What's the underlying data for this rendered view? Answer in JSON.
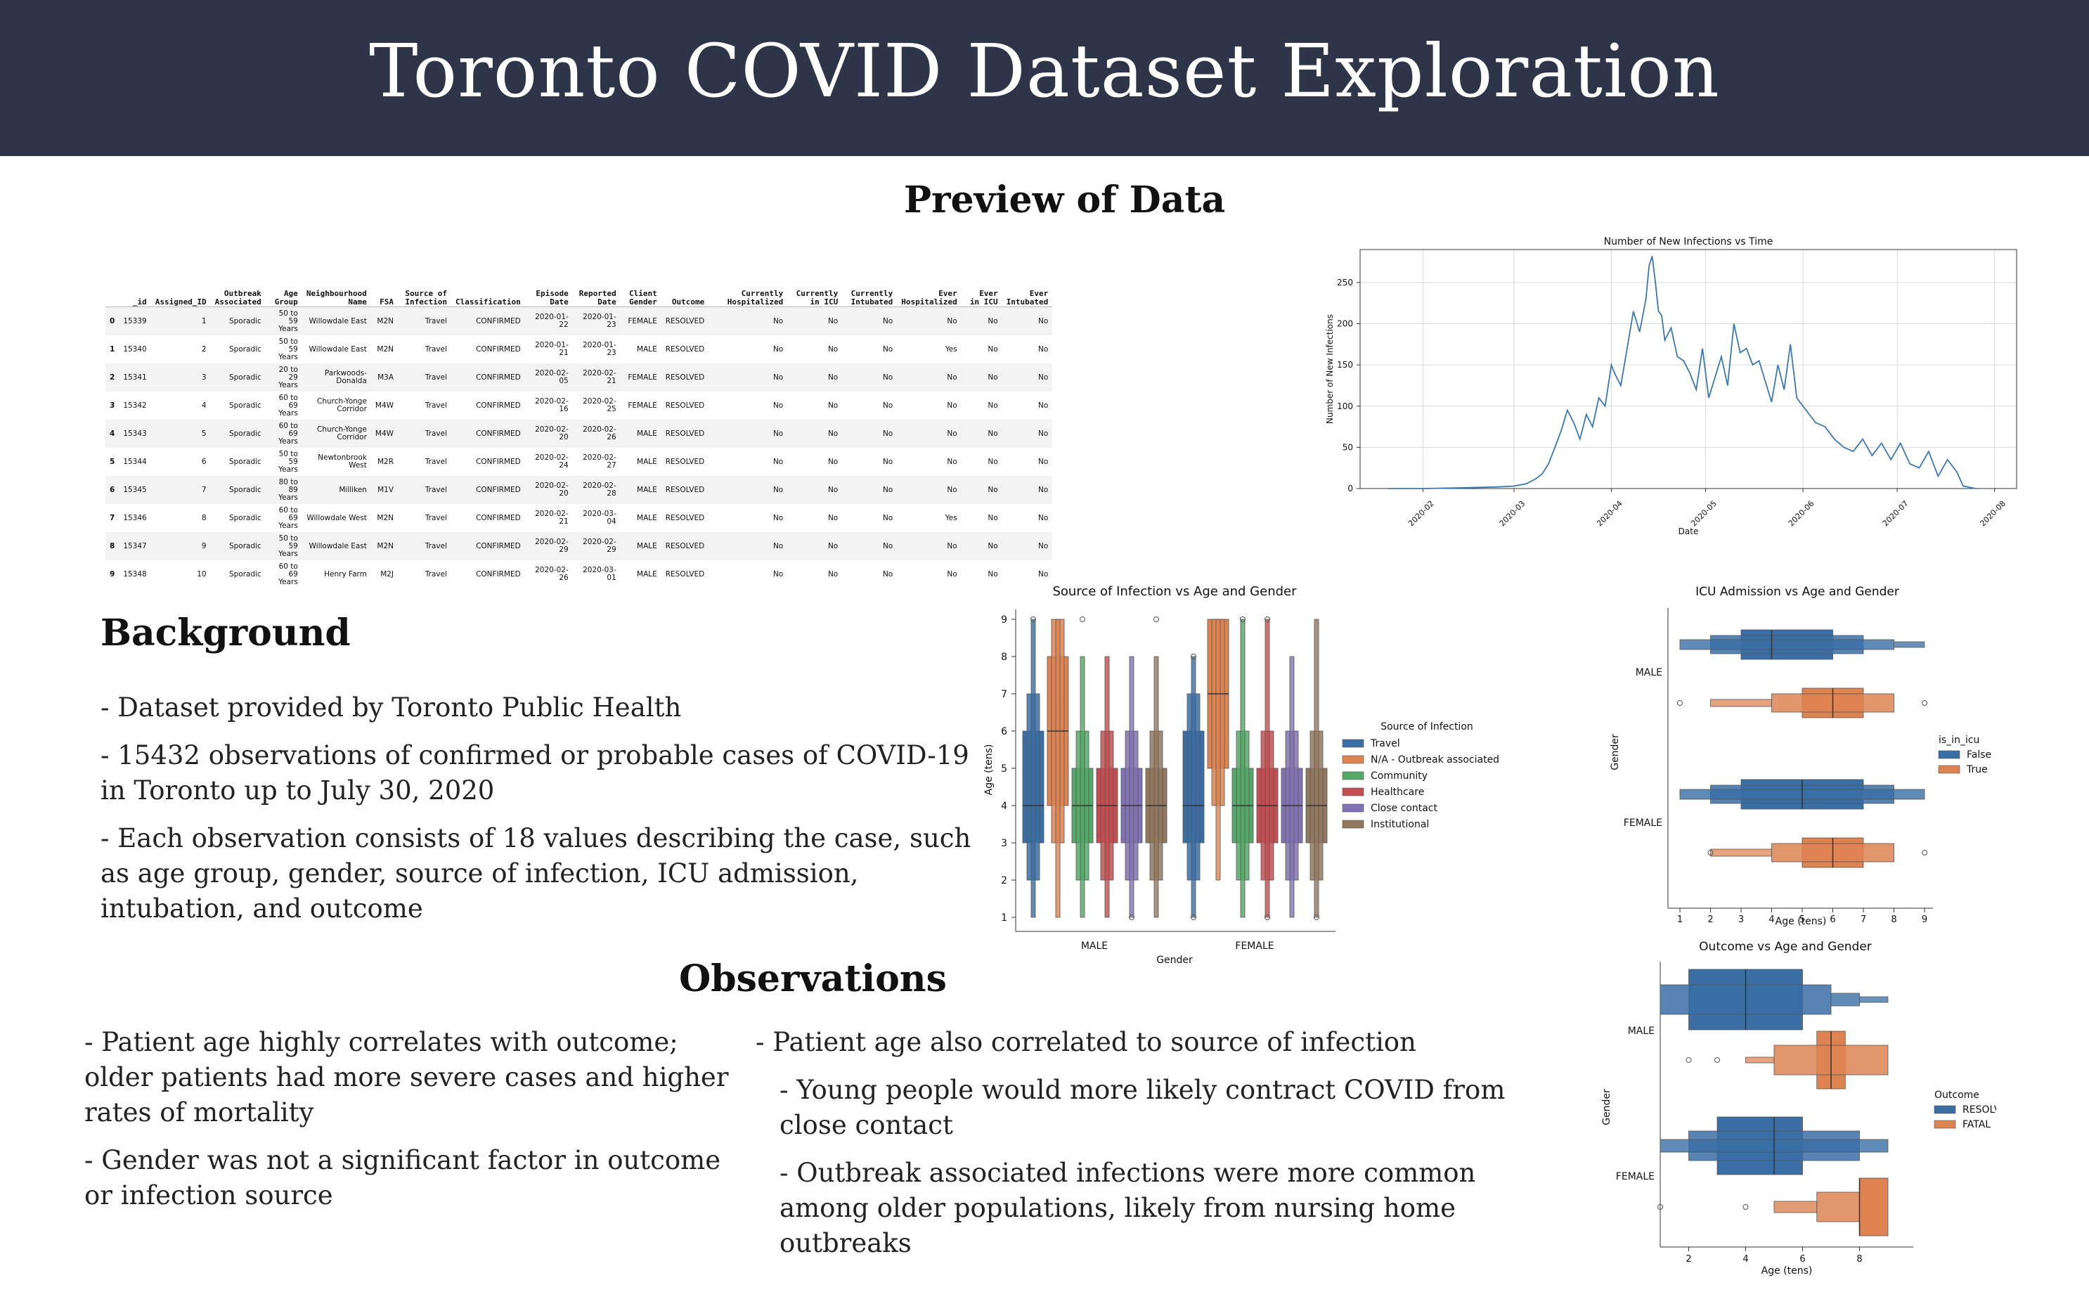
{
  "page": {
    "title": "Toronto COVID Dataset Exploration"
  },
  "preview": {
    "title": "Preview of Data",
    "columns": [
      "",
      "_id",
      "Assigned_ID",
      "Outbreak Associated",
      "Age Group",
      "Neighbourhood Name",
      "FSA",
      "Source of Infection",
      "Classification",
      "Episode Date",
      "Reported Date",
      "Client Gender",
      "Outcome",
      "Currently Hospitalized",
      "Currently in ICU",
      "Currently Intubated",
      "Ever Hospitalized",
      "Ever in ICU",
      "Ever Intubated"
    ],
    "rows": [
      [
        "0",
        "15339",
        "1",
        "Sporadic",
        "50 to 59 Years",
        "Willowdale East",
        "M2N",
        "Travel",
        "CONFIRMED",
        "2020-01-22",
        "2020-01-23",
        "FEMALE",
        "RESOLVED",
        "No",
        "No",
        "No",
        "No",
        "No",
        "No"
      ],
      [
        "1",
        "15340",
        "2",
        "Sporadic",
        "50 to 59 Years",
        "Willowdale East",
        "M2N",
        "Travel",
        "CONFIRMED",
        "2020-01-21",
        "2020-01-23",
        "MALE",
        "RESOLVED",
        "No",
        "No",
        "No",
        "Yes",
        "No",
        "No"
      ],
      [
        "2",
        "15341",
        "3",
        "Sporadic",
        "20 to 29 Years",
        "Parkwoods-Donalda",
        "M3A",
        "Travel",
        "CONFIRMED",
        "2020-02-05",
        "2020-02-21",
        "FEMALE",
        "RESOLVED",
        "No",
        "No",
        "No",
        "No",
        "No",
        "No"
      ],
      [
        "3",
        "15342",
        "4",
        "Sporadic",
        "60 to 69 Years",
        "Church-Yonge Corridor",
        "M4W",
        "Travel",
        "CONFIRMED",
        "2020-02-16",
        "2020-02-25",
        "FEMALE",
        "RESOLVED",
        "No",
        "No",
        "No",
        "No",
        "No",
        "No"
      ],
      [
        "4",
        "15343",
        "5",
        "Sporadic",
        "60 to 69 Years",
        "Church-Yonge Corridor",
        "M4W",
        "Travel",
        "CONFIRMED",
        "2020-02-20",
        "2020-02-26",
        "MALE",
        "RESOLVED",
        "No",
        "No",
        "No",
        "No",
        "No",
        "No"
      ],
      [
        "5",
        "15344",
        "6",
        "Sporadic",
        "50 to 59 Years",
        "Newtonbrook West",
        "M2R",
        "Travel",
        "CONFIRMED",
        "2020-02-24",
        "2020-02-27",
        "MALE",
        "RESOLVED",
        "No",
        "No",
        "No",
        "No",
        "No",
        "No"
      ],
      [
        "6",
        "15345",
        "7",
        "Sporadic",
        "80 to 89 Years",
        "Milliken",
        "M1V",
        "Travel",
        "CONFIRMED",
        "2020-02-20",
        "2020-02-28",
        "MALE",
        "RESOLVED",
        "No",
        "No",
        "No",
        "No",
        "No",
        "No"
      ],
      [
        "7",
        "15346",
        "8",
        "Sporadic",
        "60 to 69 Years",
        "Willowdale West",
        "M2N",
        "Travel",
        "CONFIRMED",
        "2020-02-21",
        "2020-03-04",
        "MALE",
        "RESOLVED",
        "No",
        "No",
        "No",
        "Yes",
        "No",
        "No"
      ],
      [
        "8",
        "15347",
        "9",
        "Sporadic",
        "50 to 59 Years",
        "Willowdale East",
        "M2N",
        "Travel",
        "CONFIRMED",
        "2020-02-29",
        "2020-02-29",
        "MALE",
        "RESOLVED",
        "No",
        "No",
        "No",
        "No",
        "No",
        "No"
      ],
      [
        "9",
        "15348",
        "10",
        "Sporadic",
        "60 to 69 Years",
        "Henry Farm",
        "M2J",
        "Travel",
        "CONFIRMED",
        "2020-02-26",
        "2020-03-01",
        "MALE",
        "RESOLVED",
        "No",
        "No",
        "No",
        "No",
        "No",
        "No"
      ]
    ]
  },
  "background": {
    "title": "Background",
    "items": [
      "- Dataset provided by Toronto Public Health",
      "- 15432 observations of confirmed or probable cases of COVID-19 in Toronto up to July 30, 2020",
      "- Each observation consists of 18 values describing the case, such as age group, gender, source of infection, ICU admission, intubation, and outcome"
    ]
  },
  "observations": {
    "title": "Observations",
    "left": [
      "- Patient age highly correlates with outcome; older patients had more severe cases and higher rates of mortality",
      "- Gender was not a significant factor in outcome or infection source"
    ],
    "right_main": "- Patient age also correlated to source of infection",
    "right_sub": [
      "- Young people would more likely contract COVID from close contact",
      "- Outbreak associated infections were more common among older populations, likely from nursing home outbreaks"
    ]
  },
  "colors": {
    "banner": "#2f3549",
    "blue": "#3a6ea5",
    "orange": "#dd8452",
    "green": "#55a868",
    "red": "#c44e52",
    "purple": "#8172b3",
    "brown": "#937860"
  },
  "chart_data": [
    {
      "type": "line",
      "title": "Number of New Infections vs Time",
      "xlabel": "Date",
      "ylabel": "Number of New Infections",
      "ylim": [
        0,
        290
      ],
      "yticks": [
        "0",
        "50",
        "100",
        "150",
        "200",
        "250"
      ],
      "xticks": [
        "2020-02",
        "2020-03",
        "2020-04",
        "2020-05",
        "2020-06",
        "2020-07",
        "2020-08"
      ],
      "grid": true,
      "series": [
        {
          "x": [
            "2020-01-21",
            "2020-02-01",
            "2020-02-15",
            "2020-02-25",
            "2020-03-01",
            "2020-03-05",
            "2020-03-08",
            "2020-03-10",
            "2020-03-12",
            "2020-03-14",
            "2020-03-16",
            "2020-03-18",
            "2020-03-20",
            "2020-03-22",
            "2020-03-24",
            "2020-03-26",
            "2020-03-28",
            "2020-03-30",
            "2020-04-01",
            "2020-04-02",
            "2020-04-04",
            "2020-04-06",
            "2020-04-08",
            "2020-04-10",
            "2020-04-12",
            "2020-04-13",
            "2020-04-14",
            "2020-04-15",
            "2020-04-16",
            "2020-04-17",
            "2020-04-18",
            "2020-04-20",
            "2020-04-22",
            "2020-04-24",
            "2020-04-26",
            "2020-04-28",
            "2020-04-30",
            "2020-05-02",
            "2020-05-04",
            "2020-05-06",
            "2020-05-08",
            "2020-05-10",
            "2020-05-12",
            "2020-05-14",
            "2020-05-16",
            "2020-05-18",
            "2020-05-20",
            "2020-05-22",
            "2020-05-24",
            "2020-05-26",
            "2020-05-28",
            "2020-05-30",
            "2020-06-01",
            "2020-06-03",
            "2020-06-05",
            "2020-06-08",
            "2020-06-11",
            "2020-06-14",
            "2020-06-17",
            "2020-06-20",
            "2020-06-23",
            "2020-06-26",
            "2020-06-29",
            "2020-07-02",
            "2020-07-05",
            "2020-07-08",
            "2020-07-11",
            "2020-07-14",
            "2020-07-17",
            "2020-07-20",
            "2020-07-22",
            "2020-07-26"
          ],
          "y": [
            0,
            0,
            1,
            2,
            3,
            6,
            12,
            18,
            30,
            50,
            70,
            95,
            80,
            60,
            90,
            75,
            110,
            100,
            150,
            140,
            125,
            170,
            215,
            190,
            230,
            270,
            282,
            250,
            215,
            210,
            180,
            195,
            160,
            155,
            140,
            120,
            170,
            110,
            135,
            160,
            125,
            200,
            165,
            170,
            150,
            155,
            130,
            105,
            150,
            120,
            175,
            110,
            100,
            90,
            80,
            75,
            60,
            50,
            45,
            60,
            40,
            55,
            35,
            55,
            30,
            25,
            45,
            15,
            35,
            20,
            3,
            0
          ]
        }
      ]
    },
    {
      "type": "boxen",
      "title": "Source of Infection vs Age and Gender",
      "xlabel": "Gender",
      "ylabel": "Age (tens)",
      "categories": [
        "MALE",
        "FEMALE"
      ],
      "yticks": [
        "1",
        "2",
        "3",
        "4",
        "5",
        "6",
        "7",
        "8",
        "9"
      ],
      "legend_title": "Source of Infection",
      "legend_position": "right",
      "series": [
        {
          "name": "Travel",
          "median": [
            4,
            4
          ]
        },
        {
          "name": "N/A - Outbreak associated",
          "median": [
            6,
            7
          ]
        },
        {
          "name": "Community",
          "median": [
            4,
            4
          ]
        },
        {
          "name": "Healthcare",
          "median": [
            4,
            4
          ]
        },
        {
          "name": "Close contact",
          "median": [
            4,
            4
          ]
        },
        {
          "name": "Institutional",
          "median": [
            4,
            4
          ]
        }
      ]
    },
    {
      "type": "boxen",
      "title": "ICU Admission vs Age and Gender",
      "xlabel": "Age (tens)",
      "ylabel": "Gender",
      "categories": [
        "MALE",
        "FEMALE"
      ],
      "xticks": [
        "1",
        "2",
        "3",
        "4",
        "5",
        "6",
        "7",
        "8",
        "9"
      ],
      "legend_title": "is_in_icu",
      "legend_position": "right",
      "series": [
        {
          "name": "False",
          "median": [
            4,
            5
          ]
        },
        {
          "name": "True",
          "median": [
            6,
            6
          ]
        }
      ]
    },
    {
      "type": "boxen",
      "title": "Outcome vs Age and Gender",
      "xlabel": "Age (tens)",
      "ylabel": "Gender",
      "categories": [
        "MALE",
        "FEMALE"
      ],
      "xticks": [
        "2",
        "4",
        "6",
        "8"
      ],
      "legend_title": "Outcome",
      "legend_position": "right",
      "series": [
        {
          "name": "RESOLVED",
          "median": [
            4,
            5
          ]
        },
        {
          "name": "FATAL",
          "median": [
            7,
            8
          ]
        }
      ]
    }
  ]
}
